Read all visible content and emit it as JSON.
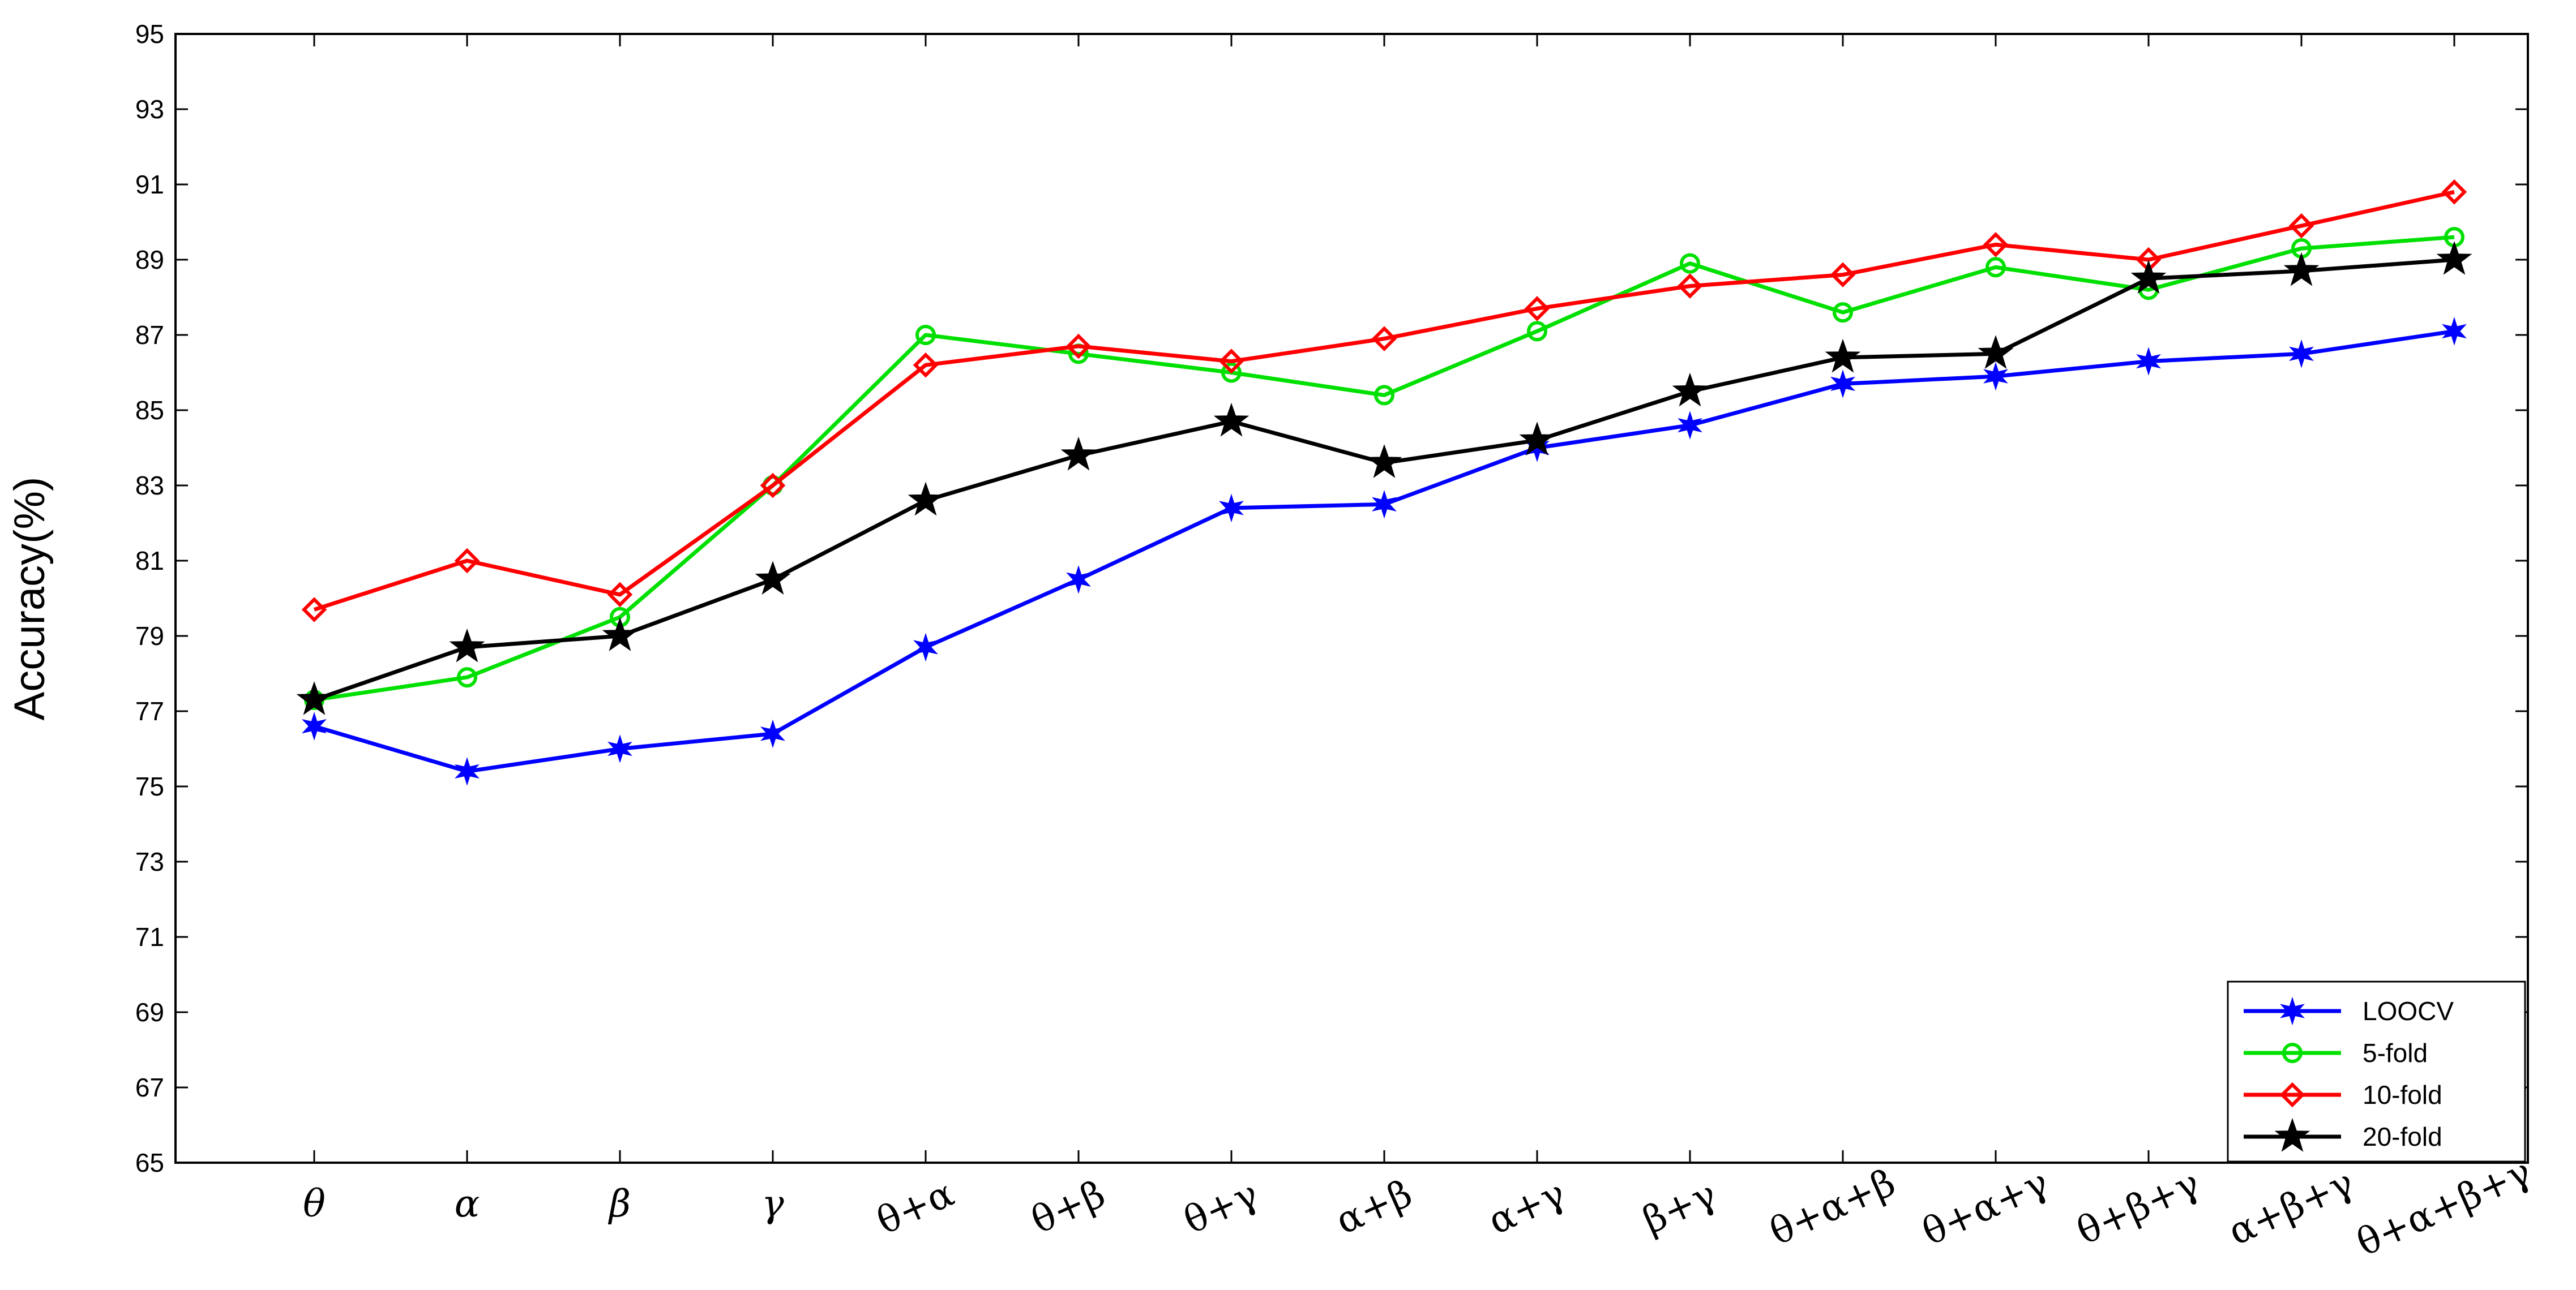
{
  "chart_data": {
    "type": "line",
    "title": "",
    "xlabel": "",
    "ylabel": "Accuracy(%)",
    "ylim": [
      65,
      95
    ],
    "yticks": [
      "65",
      "67",
      "69",
      "71",
      "73",
      "75",
      "77",
      "79",
      "81",
      "83",
      "85",
      "87",
      "89",
      "91",
      "93",
      "95"
    ],
    "categories": [
      "θ",
      "α",
      "β",
      "γ",
      "θ+α",
      "θ+β",
      "θ+γ",
      "α+β",
      "α+γ",
      "β+γ",
      "θ+α+β",
      "θ+α+γ",
      "θ+β+γ",
      "α+β+γ",
      "θ+α+β+γ"
    ],
    "grid": false,
    "legend_position": "bottom-right",
    "series": [
      {
        "name": "LOOCV",
        "color": "#0000ff",
        "marker": "star6",
        "values": [
          76.6,
          75.4,
          76.0,
          76.4,
          78.7,
          80.5,
          82.4,
          82.5,
          84.0,
          84.6,
          85.7,
          85.9,
          86.3,
          86.5,
          87.1
        ]
      },
      {
        "name": "5-fold",
        "color": "#00e000",
        "marker": "circle",
        "values": [
          77.3,
          77.9,
          79.5,
          83.0,
          87.0,
          86.5,
          86.0,
          85.4,
          87.1,
          88.9,
          87.6,
          88.8,
          88.2,
          89.3,
          89.6
        ]
      },
      {
        "name": "10-fold",
        "color": "#ff0000",
        "marker": "diamond",
        "values": [
          79.7,
          81.0,
          80.1,
          83.0,
          86.2,
          86.7,
          86.3,
          86.9,
          87.7,
          88.3,
          88.6,
          89.4,
          89.0,
          89.9,
          90.8
        ]
      },
      {
        "name": "20-fold",
        "color": "#000000",
        "marker": "star5",
        "values": [
          77.3,
          78.7,
          79.0,
          80.5,
          82.6,
          83.8,
          84.7,
          83.6,
          84.2,
          85.5,
          86.4,
          86.5,
          88.5,
          88.7,
          89.0
        ]
      }
    ]
  }
}
